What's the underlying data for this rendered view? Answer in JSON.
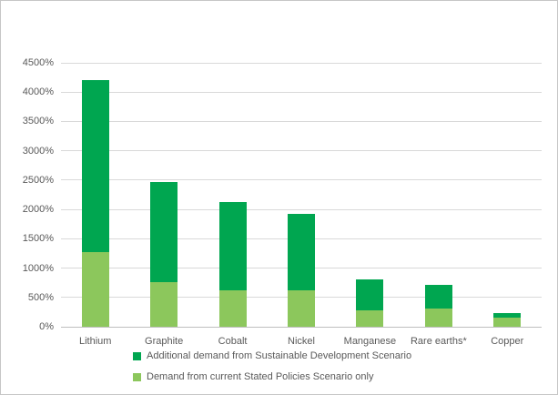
{
  "chart_data": {
    "type": "bar",
    "subtype": "stacked-vertical",
    "title": "",
    "xlabel": "",
    "ylabel": "",
    "categories": [
      "Lithium",
      "Graphite",
      "Cobalt",
      "Nickel",
      "Manganese",
      "Rare earths*",
      "Copper"
    ],
    "series": [
      {
        "name": "Demand from current Stated Policies Scenario only",
        "color": "#8CC75C",
        "values": [
          1270,
          760,
          620,
          620,
          280,
          310,
          150
        ]
      },
      {
        "name": "Additional demand from Sustainable Development Scenario",
        "color": "#00A650",
        "values": [
          2930,
          1710,
          1510,
          1310,
          520,
          410,
          90
        ]
      }
    ],
    "stack_totals": [
      4200,
      2470,
      2130,
      1930,
      800,
      720,
      240
    ],
    "ylim": [
      0,
      4500
    ],
    "y_ticks": [
      {
        "label": "0%",
        "value": 0
      },
      {
        "label": "500%",
        "value": 500
      },
      {
        "label": "1000%",
        "value": 1000
      },
      {
        "label": "1500%",
        "value": 1500
      },
      {
        "label": "2000%",
        "value": 2000
      },
      {
        "label": "2500%",
        "value": 2500
      },
      {
        "label": "3000%",
        "value": 3000
      },
      {
        "label": "3500%",
        "value": 3500
      },
      {
        "label": "4000%",
        "value": 4000
      },
      {
        "label": "4500%",
        "value": 4500
      }
    ],
    "grid": "horizontal-on",
    "legend_position": "bottom-left",
    "colors": {
      "text": "#595959",
      "gridline": "#D9D9D9",
      "axis_line": "#BFBFBF",
      "frame_border": "#C6C6C6",
      "background": "#FFFFFF"
    }
  }
}
